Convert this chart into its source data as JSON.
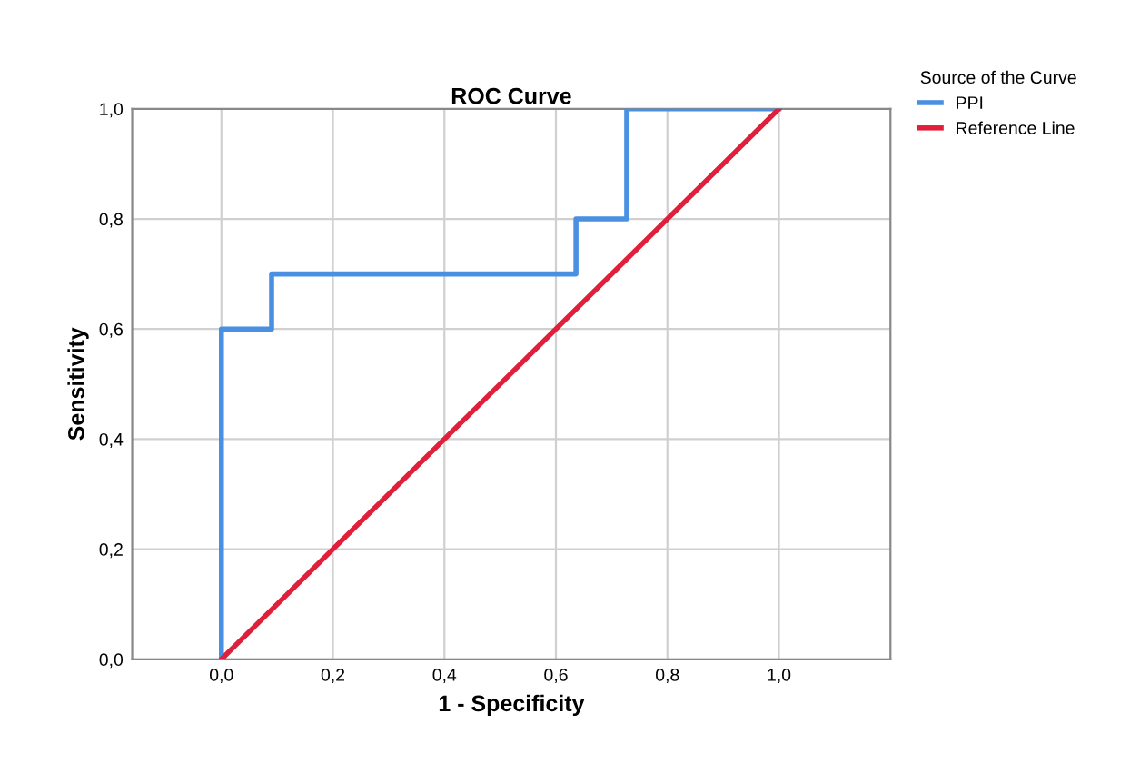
{
  "chart_data": {
    "type": "line",
    "title": "ROC Curve",
    "xlabel": "1 - Specificity",
    "ylabel": "Sensitivity",
    "legend_title": "Source of the Curve",
    "legend": "top right",
    "series": [
      {
        "name": "PPI",
        "color": "#4a90e2",
        "x": [
          0,
          0,
          0.09,
          0.09,
          0.636,
          0.636,
          0.727,
          0.727,
          1
        ],
        "values": [
          0,
          0.6,
          0.6,
          0.7,
          0.7,
          0.8,
          0.8,
          1,
          1
        ]
      },
      {
        "name": "Reference Line",
        "color": "#e0203a",
        "x": [
          0,
          1
        ],
        "values": [
          0,
          1
        ]
      }
    ],
    "xlim": [
      -0.16,
      1.2
    ],
    "ylim": [
      0,
      1
    ],
    "xticks": [
      {
        "value": 0,
        "label": "0,0"
      },
      {
        "value": 0.2,
        "label": "0,2"
      },
      {
        "value": 0.4,
        "label": "0,4"
      },
      {
        "value": 0.6,
        "label": "0,6"
      },
      {
        "value": 0.8,
        "label": "0,8"
      },
      {
        "value": 1,
        "label": "1,0"
      }
    ],
    "yticks": [
      {
        "value": 0,
        "label": "0,0"
      },
      {
        "value": 0.2,
        "label": "0,2"
      },
      {
        "value": 0.4,
        "label": "0,4"
      },
      {
        "value": 0.6,
        "label": "0,6"
      },
      {
        "value": 0.8,
        "label": "0,8"
      },
      {
        "value": 1,
        "label": "1,0"
      }
    ],
    "grid": true
  }
}
